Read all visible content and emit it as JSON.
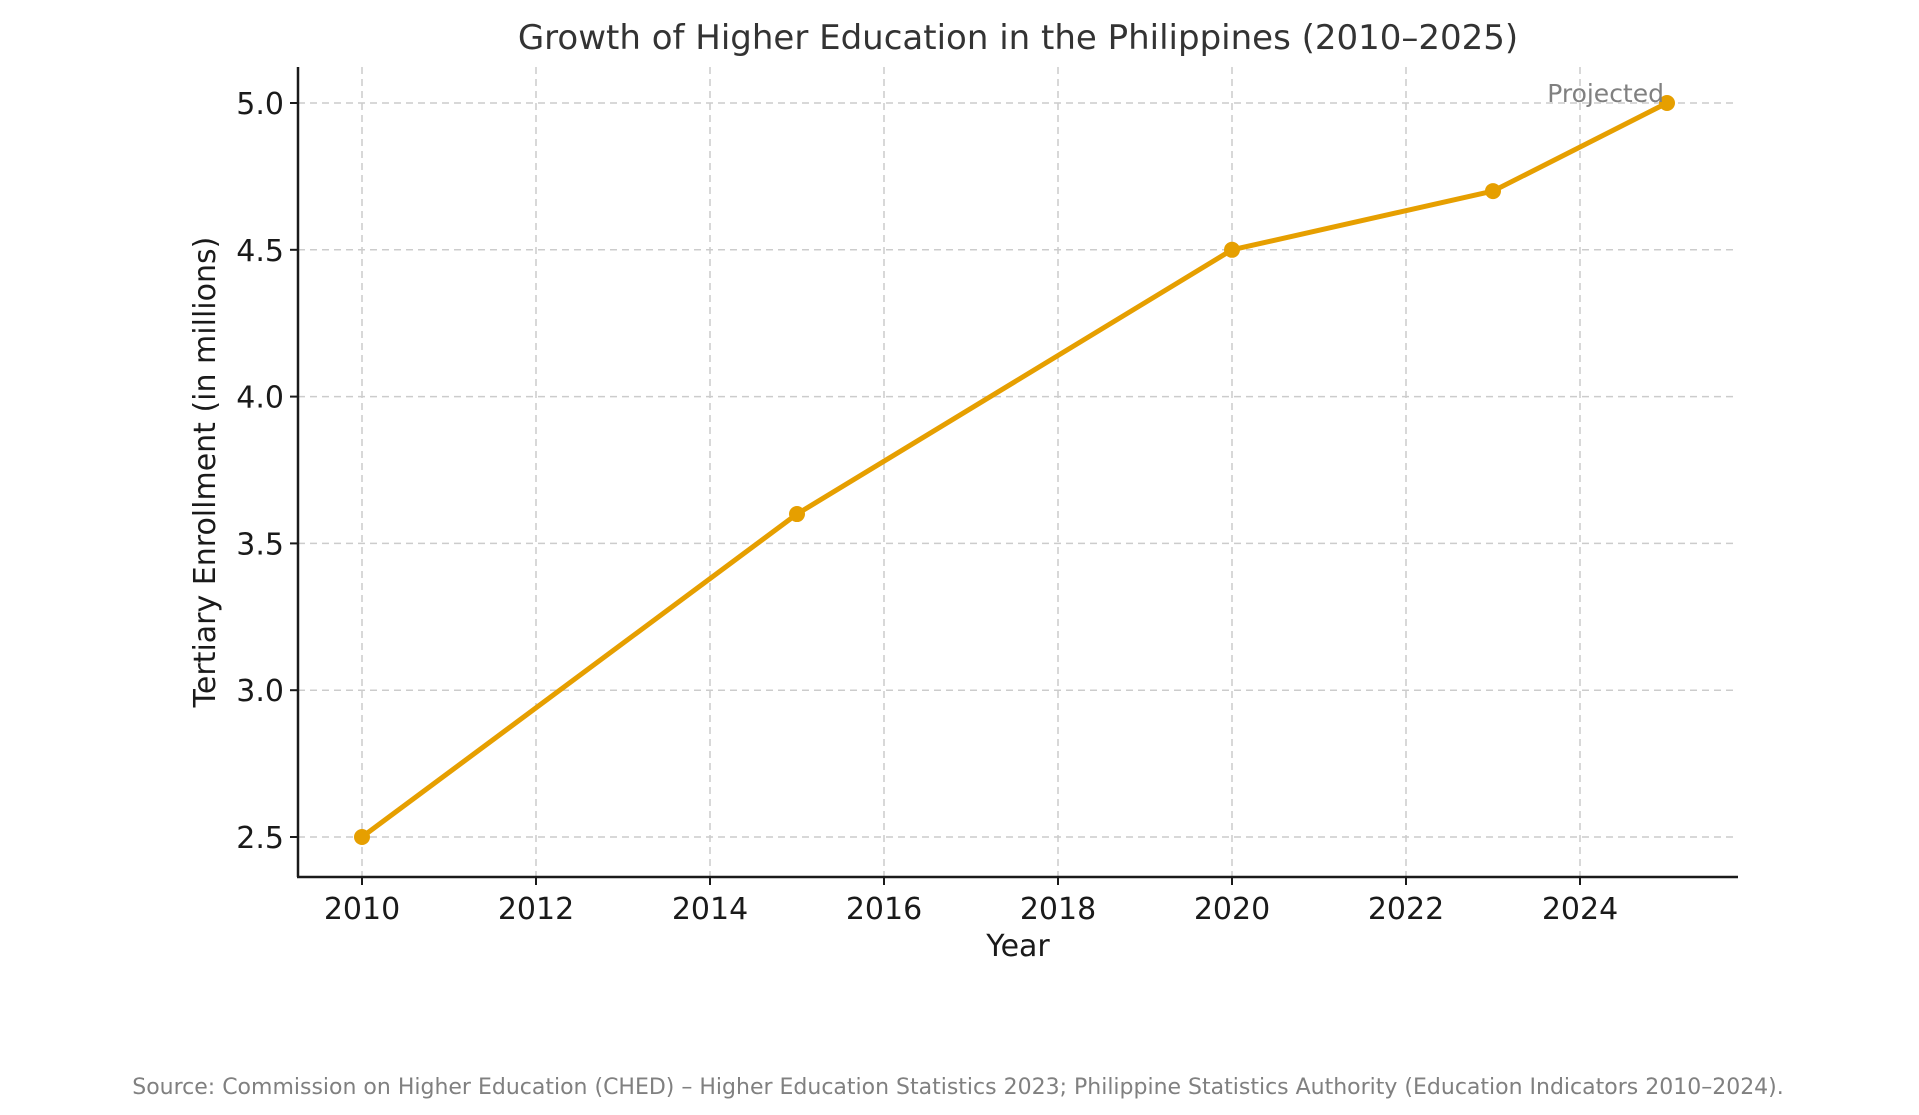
{
  "chart_data": {
    "type": "line",
    "title": "Growth of Higher Education in the Philippines (2010–2025)",
    "xlabel": "Year",
    "ylabel": "Tertiary Enrollment (in millions)",
    "x": [
      2010,
      2015,
      2020,
      2023,
      2025
    ],
    "series": [
      {
        "name": "Tertiary Enrollment",
        "values": [
          2.5,
          3.6,
          4.5,
          4.7,
          5.0
        ],
        "color": "#E69F00"
      }
    ],
    "xticks": [
      2010,
      2012,
      2014,
      2016,
      2018,
      2020,
      2022,
      2024
    ],
    "xtick_labels": [
      "2010",
      "2012",
      "2014",
      "2016",
      "2018",
      "2020",
      "2022",
      "2024"
    ],
    "yticks": [
      2.5,
      3.0,
      3.5,
      4.0,
      4.5,
      5.0
    ],
    "ytick_labels": [
      "2.5",
      "3.0",
      "3.5",
      "4.0",
      "4.5",
      "5.0"
    ],
    "xlim": [
      2009.25,
      2025.75
    ],
    "ylim": [
      2.375,
      5.12
    ],
    "grid": true,
    "grid_style": "dashed",
    "legend": null,
    "annotations": [
      {
        "text": "Projected",
        "x": 2025,
        "y": 5.0,
        "anchor": "right"
      }
    ],
    "source_note": "Source: Commission on Higher Education (CHED) – Higher Education Statistics 2023; Philippine Statistics Authority (Education Indicators 2010–2024)."
  }
}
